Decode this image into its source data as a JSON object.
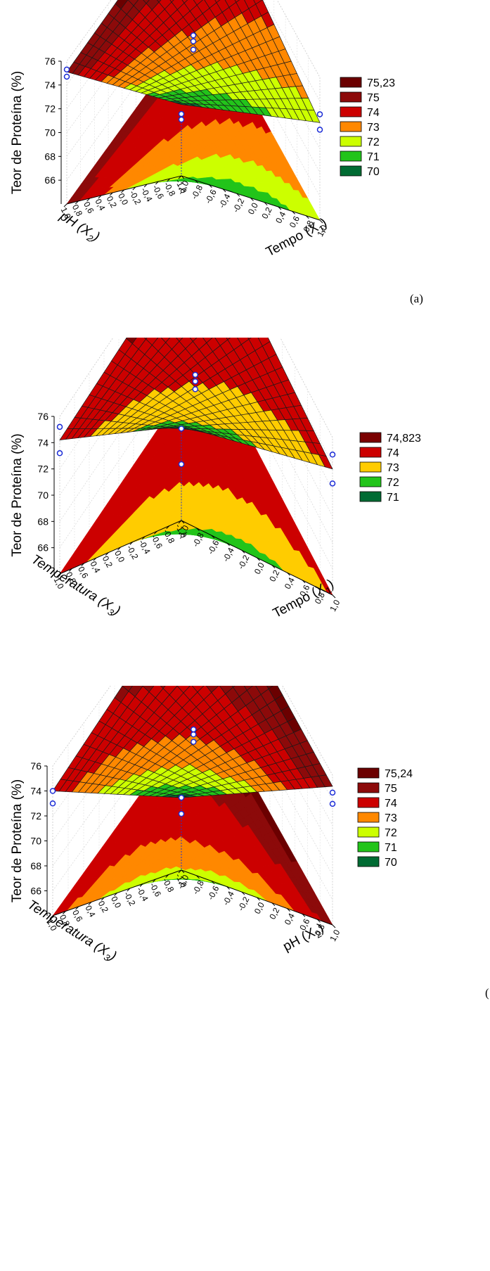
{
  "figure": {
    "charts": [
      {
        "id": "a",
        "panel_label": "(a)",
        "zlabel": "Teor de Proteína (%)",
        "x_axis_label": "Tempo (X1)",
        "x_var": "Tempo",
        "x_sub": "1",
        "y_axis_label": "pH (X2)",
        "y_var": "pH",
        "y_sub": "2",
        "y_italic": true,
        "legend": [
          {
            "label": "75,23",
            "color": "#6b0000"
          },
          {
            "label": "75",
            "color": "#8c0a0a"
          },
          {
            "label": "74",
            "color": "#cc0000"
          },
          {
            "label": "73",
            "color": "#ff8800"
          },
          {
            "label": "72",
            "color": "#ccff00"
          },
          {
            "label": "71",
            "color": "#22c41a"
          },
          {
            "label": "70",
            "color": "#006b33"
          }
        ]
      },
      {
        "id": "b",
        "panel_label": "",
        "zlabel": "Teor de Proteína (%)",
        "x_axis_label": "Tempo (X1)",
        "x_var": "Tempo",
        "x_sub": "1",
        "y_axis_label": "Temperatura (X3)",
        "y_var": "Temperatura",
        "y_sub": "3",
        "y_italic": true,
        "legend": [
          {
            "label": "74,823",
            "color": "#7a0000"
          },
          {
            "label": "74",
            "color": "#cc0000"
          },
          {
            "label": "73",
            "color": "#ffcc00"
          },
          {
            "label": "72",
            "color": "#22c41a"
          },
          {
            "label": "71",
            "color": "#006b33"
          }
        ]
      },
      {
        "id": "c",
        "panel_label": "(",
        "zlabel": "Teor de Proteína (%)",
        "x_axis_label": "pH (X2)",
        "x_var": "pH",
        "x_sub": "2",
        "y_axis_label": "Temperatura (X3)",
        "y_var": "Temperatura",
        "y_sub": "3",
        "y_italic": true,
        "legend": [
          {
            "label": "75,24",
            "color": "#6b0000"
          },
          {
            "label": "75",
            "color": "#8c0a0a"
          },
          {
            "label": "74",
            "color": "#cc0000"
          },
          {
            "label": "73",
            "color": "#ff8800"
          },
          {
            "label": "72",
            "color": "#ccff00"
          },
          {
            "label": "71",
            "color": "#22c41a"
          },
          {
            "label": "70",
            "color": "#006b33"
          }
        ]
      }
    ]
  },
  "chart_data": [
    {
      "type": "surface",
      "title": "",
      "xlabel": "Tempo (X1)",
      "ylabel": "pH (X2)",
      "zlabel": "Teor de Proteína (%)",
      "xlim": [
        -1.0,
        1.0
      ],
      "ylim": [
        -1.0,
        1.0
      ],
      "zlim": [
        64,
        76
      ],
      "xticks": [
        "-1,0",
        "-0,8",
        "-0,6",
        "-0,4",
        "-0,2",
        "0,0",
        "0,2",
        "0,4",
        "0,6",
        "0,8",
        "1,0"
      ],
      "yticks": [
        "-1,0",
        "-0,8",
        "-0,6",
        "-0,4",
        "-0,2",
        "0,0",
        "0,2",
        "0,4",
        "0,6",
        "0,8",
        "1,0"
      ],
      "zticks": [
        "66",
        "68",
        "70",
        "72",
        "74",
        "76"
      ],
      "surface_corners": {
        "x=-1,y=-1": 70,
        "x=1,y=-1": 72.2,
        "x=-1,y=1": 75.1,
        "x=1,y=1": 75.4
      },
      "observed_points": [
        {
          "x": -1,
          "y": -1,
          "z": 69.2
        },
        {
          "x": -1,
          "y": 1,
          "z": 75.3
        },
        {
          "x": -1,
          "y": 1,
          "z": 74.7
        },
        {
          "x": 1,
          "y": 1,
          "z": 76.0
        },
        {
          "x": 1,
          "y": 1,
          "z": 75.6
        },
        {
          "x": 1,
          "y": -1,
          "z": 72.9
        },
        {
          "x": 1,
          "y": -1,
          "z": 71.6
        },
        {
          "x": 0,
          "y": 0,
          "z": 73.9
        },
        {
          "x": 0,
          "y": 0,
          "z": 73.4
        },
        {
          "x": 0,
          "y": 0,
          "z": 72.7
        }
      ],
      "legend": [
        "75,23",
        "75",
        "74",
        "73",
        "72",
        "71",
        "70"
      ]
    },
    {
      "type": "surface",
      "title": "",
      "xlabel": "Tempo (X1)",
      "ylabel": "Temperatura (X3)",
      "zlabel": "Teor de Proteína (%)",
      "xlim": [
        -1.0,
        1.0
      ],
      "ylim": [
        -1.0,
        1.0
      ],
      "zlim": [
        64,
        76
      ],
      "xticks": [
        "-1,0",
        "-0,8",
        "-0,6",
        "-0,4",
        "-0,2",
        "0,0",
        "0,2",
        "0,4",
        "0,6",
        "0,8",
        "1,0"
      ],
      "yticks": [
        "-1,0",
        "-0,8",
        "-0,6",
        "-0,4",
        "-0,2",
        "0,0",
        "0,2",
        "0,4",
        "0,6",
        "0,8",
        "1,0"
      ],
      "zticks": [
        "66",
        "68",
        "70",
        "72",
        "74",
        "76"
      ],
      "surface_corners": {
        "x=-1,y=-1": 71.2,
        "x=1,y=-1": 73.6,
        "x=-1,y=1": 74.2,
        "x=1,y=1": 74.8
      },
      "observed_points": [
        {
          "x": -1,
          "y": -1,
          "z": 71.0
        },
        {
          "x": -1,
          "y": 1,
          "z": 75.2
        },
        {
          "x": -1,
          "y": 1,
          "z": 73.2
        },
        {
          "x": 1,
          "y": 1,
          "z": 76.2
        },
        {
          "x": 1,
          "y": -1,
          "z": 74.7
        },
        {
          "x": 1,
          "y": -1,
          "z": 72.5
        },
        {
          "x": 0,
          "y": 0,
          "z": 74.4
        },
        {
          "x": 0,
          "y": 0,
          "z": 73.9
        },
        {
          "x": 0,
          "y": 0,
          "z": 73.3
        }
      ],
      "legend": [
        "74,823",
        "74",
        "73",
        "72",
        "71"
      ]
    },
    {
      "type": "surface",
      "title": "",
      "xlabel": "pH (X2)",
      "ylabel": "Temperatura (X3)",
      "zlabel": "Teor de Proteína (%)",
      "xlim": [
        -1.0,
        1.0
      ],
      "ylim": [
        -1.0,
        1.0
      ],
      "zlim": [
        64,
        76
      ],
      "xticks": [
        "-1,0",
        "-0,8",
        "-0,6",
        "-0,4",
        "-0,2",
        "0,0",
        "0,2",
        "0,4",
        "0,6",
        "0,8",
        "1,0"
      ],
      "yticks": [
        "-1,0",
        "-0,8",
        "-0,6",
        "-0,4",
        "-0,2",
        "0,0",
        "0,2",
        "0,4",
        "0,6",
        "0,8",
        "1,0"
      ],
      "zticks": [
        "66",
        "68",
        "70",
        "72",
        "74",
        "76"
      ],
      "surface_corners": {
        "x=-1,y=-1": 69.8,
        "x=1,y=-1": 75.1,
        "x=-1,y=1": 74.0,
        "x=1,y=1": 75.5
      },
      "observed_points": [
        {
          "x": -1,
          "y": -1,
          "z": 69.8
        },
        {
          "x": -1,
          "y": 1,
          "z": 74.0
        },
        {
          "x": -1,
          "y": 1,
          "z": 73.0
        },
        {
          "x": 1,
          "y": 1,
          "z": 76.1
        },
        {
          "x": 1,
          "y": 1,
          "z": 75.7
        },
        {
          "x": 1,
          "y": -1,
          "z": 74.6
        },
        {
          "x": 1,
          "y": -1,
          "z": 73.7
        },
        {
          "x": 0,
          "y": 0,
          "z": 73.9
        },
        {
          "x": 0,
          "y": 0,
          "z": 73.5
        },
        {
          "x": 0,
          "y": 0,
          "z": 72.9
        }
      ],
      "legend": [
        "75,24",
        "75",
        "74",
        "73",
        "72",
        "71",
        "70"
      ]
    }
  ]
}
